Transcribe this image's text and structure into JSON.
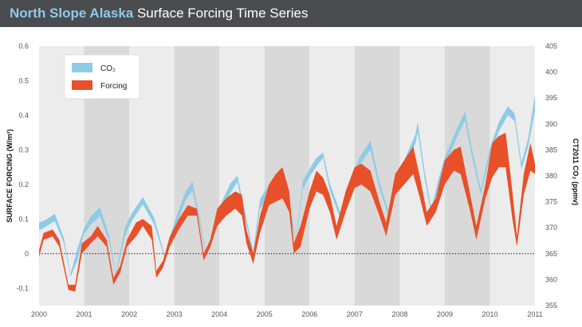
{
  "header": {
    "title_bold": "North Slope Alaska",
    "title_rest": " Surface Forcing Time Series"
  },
  "colors": {
    "header_bg": "#4a4c50",
    "title_accent": "#8ecbe6",
    "co2": "#8ecbe6",
    "forcing": "#e8502a",
    "band_dark": "#d9d9d9",
    "band_light": "#ececec"
  },
  "chart_data": {
    "type": "area",
    "title": "North Slope Alaska Surface Forcing Time Series",
    "ylabel_left": "SURFACE FORCING (W/m²)",
    "ylabel_right": "CT2011 CO₂ (ppmv)",
    "xlim": [
      2000,
      2011
    ],
    "ylim_left": [
      -0.15,
      0.6
    ],
    "ylim_right": [
      355,
      405
    ],
    "x_ticks": [
      "2000",
      "2001",
      "2002",
      "2003",
      "2004",
      "2005",
      "2006",
      "2007",
      "2008",
      "2009",
      "2010",
      "2011"
    ],
    "y_ticks_left": [
      "-0.1",
      "0",
      "0.1",
      "0.2",
      "0.3",
      "0.4",
      "0.5",
      "0.6"
    ],
    "y_ticks_right": [
      "355",
      "360",
      "365",
      "370",
      "375",
      "380",
      "385",
      "390",
      "395",
      "400",
      "405"
    ],
    "legend": {
      "position": "top-left",
      "co2_label": "CO₂",
      "forcing_label": "Forcing"
    },
    "zero_line": "dotted",
    "shaded_bands": "alternating gray year bands",
    "series": [
      {
        "name": "CO₂",
        "axis": "right",
        "points": [
          [
            2000.0,
            369.5,
            371.0
          ],
          [
            2000.15,
            370.2,
            371.5
          ],
          [
            2000.35,
            371.3,
            372.7
          ],
          [
            2000.55,
            367.0,
            368.0
          ],
          [
            2000.7,
            360.6,
            361.1
          ],
          [
            2000.85,
            363.6,
            366.0
          ],
          [
            2001.0,
            368.8,
            369.9
          ],
          [
            2001.15,
            370.6,
            372.2
          ],
          [
            2001.35,
            372.3,
            374.0
          ],
          [
            2001.55,
            367.5,
            368.6
          ],
          [
            2001.7,
            360.5,
            361.0
          ],
          [
            2001.9,
            368.3,
            369.9
          ],
          [
            2002.05,
            371.2,
            372.7
          ],
          [
            2002.3,
            374.5,
            375.9
          ],
          [
            2002.55,
            370.7,
            372.0
          ],
          [
            2002.8,
            363.8,
            364.2
          ],
          [
            2003.0,
            369.5,
            371.0
          ],
          [
            2003.25,
            375.3,
            377.0
          ],
          [
            2003.4,
            377.2,
            378.9
          ],
          [
            2003.55,
            371.5,
            372.6
          ],
          [
            2003.7,
            364.6,
            365.2
          ],
          [
            2004.0,
            372.2,
            374.0
          ],
          [
            2004.25,
            376.8,
            378.6
          ],
          [
            2004.4,
            378.8,
            380.0
          ],
          [
            2004.6,
            370.6,
            371.8
          ],
          [
            2004.75,
            364.6,
            365.5
          ],
          [
            2004.9,
            373.6,
            375.5
          ],
          [
            2005.15,
            377.2,
            379.0
          ],
          [
            2005.35,
            380.0,
            381.4
          ],
          [
            2005.55,
            373.4,
            374.8
          ],
          [
            2005.7,
            367.3,
            367.9
          ],
          [
            2005.85,
            377.5,
            379.0
          ],
          [
            2006.0,
            379.8,
            381.3
          ],
          [
            2006.15,
            381.8,
            383.5
          ],
          [
            2006.3,
            383.5,
            384.5
          ],
          [
            2006.45,
            377.2,
            378.5
          ],
          [
            2006.7,
            371.3,
            372.5
          ],
          [
            2006.85,
            375.8,
            377.5
          ],
          [
            2007.1,
            382.0,
            383.5
          ],
          [
            2007.35,
            385.0,
            386.8
          ],
          [
            2007.55,
            377.6,
            378.8
          ],
          [
            2007.75,
            372.3,
            373.3
          ],
          [
            2007.9,
            377.4,
            379.0
          ],
          [
            2008.1,
            381.2,
            383.0
          ],
          [
            2008.35,
            386.3,
            388.0
          ],
          [
            2008.4,
            388.5,
            390.3
          ],
          [
            2008.55,
            379.5,
            381.0
          ],
          [
            2008.7,
            372.5,
            373.6
          ],
          [
            2008.85,
            377.5,
            379.0
          ],
          [
            2009.0,
            382.0,
            383.6
          ],
          [
            2009.3,
            388.0,
            389.7
          ],
          [
            2009.45,
            390.7,
            392.4
          ],
          [
            2009.6,
            383.8,
            385.3
          ],
          [
            2009.8,
            376.4,
            377.4
          ],
          [
            2010.0,
            383.7,
            385.3
          ],
          [
            2010.2,
            388.6,
            390.4
          ],
          [
            2010.4,
            391.7,
            393.4
          ],
          [
            2010.55,
            390.5,
            392.0
          ],
          [
            2010.7,
            381.2,
            382.5
          ],
          [
            2010.85,
            385.6,
            387.2
          ],
          [
            2011.0,
            392.5,
            395.6
          ]
        ]
      },
      {
        "name": "Forcing",
        "axis": "left",
        "points": [
          [
            2000.0,
            -0.01,
            0.01
          ],
          [
            2000.1,
            0.04,
            0.06
          ],
          [
            2000.3,
            0.05,
            0.07
          ],
          [
            2000.45,
            0.02,
            0.04
          ],
          [
            2000.65,
            -0.105,
            -0.09
          ],
          [
            2000.8,
            -0.11,
            -0.09
          ],
          [
            2000.95,
            0.0,
            0.03
          ],
          [
            2001.15,
            0.03,
            0.05
          ],
          [
            2001.3,
            0.05,
            0.08
          ],
          [
            2001.5,
            0.02,
            0.04
          ],
          [
            2001.65,
            -0.09,
            -0.07
          ],
          [
            2001.8,
            -0.055,
            -0.035
          ],
          [
            2001.95,
            0.02,
            0.04
          ],
          [
            2002.15,
            0.05,
            0.09
          ],
          [
            2002.3,
            0.08,
            0.1
          ],
          [
            2002.5,
            0.04,
            0.08
          ],
          [
            2002.6,
            -0.07,
            -0.05
          ],
          [
            2002.75,
            -0.04,
            -0.02
          ],
          [
            2002.9,
            0.02,
            0.05
          ],
          [
            2003.1,
            0.07,
            0.1
          ],
          [
            2003.3,
            0.11,
            0.14
          ],
          [
            2003.5,
            0.11,
            0.13
          ],
          [
            2003.65,
            -0.02,
            0.0
          ],
          [
            2003.8,
            0.02,
            0.04
          ],
          [
            2003.95,
            0.08,
            0.13
          ],
          [
            2004.15,
            0.11,
            0.16
          ],
          [
            2004.35,
            0.13,
            0.18
          ],
          [
            2004.5,
            0.11,
            0.17
          ],
          [
            2004.6,
            0.03,
            0.07
          ],
          [
            2004.75,
            -0.03,
            0.0
          ],
          [
            2004.9,
            0.06,
            0.11
          ],
          [
            2005.1,
            0.14,
            0.2
          ],
          [
            2005.25,
            0.15,
            0.23
          ],
          [
            2005.4,
            0.16,
            0.25
          ],
          [
            2005.55,
            0.12,
            0.18
          ],
          [
            2005.65,
            0.0,
            0.03
          ],
          [
            2005.8,
            0.02,
            0.08
          ],
          [
            2006.0,
            0.13,
            0.18
          ],
          [
            2006.15,
            0.18,
            0.24
          ],
          [
            2006.3,
            0.17,
            0.22
          ],
          [
            2006.45,
            0.12,
            0.17
          ],
          [
            2006.6,
            0.04,
            0.08
          ],
          [
            2006.8,
            0.12,
            0.18
          ],
          [
            2007.0,
            0.19,
            0.25
          ],
          [
            2007.15,
            0.2,
            0.26
          ],
          [
            2007.35,
            0.18,
            0.24
          ],
          [
            2007.55,
            0.11,
            0.15
          ],
          [
            2007.7,
            0.05,
            0.09
          ],
          [
            2007.9,
            0.17,
            0.23
          ],
          [
            2008.1,
            0.2,
            0.27
          ],
          [
            2008.3,
            0.23,
            0.31
          ],
          [
            2008.45,
            0.16,
            0.22
          ],
          [
            2008.6,
            0.08,
            0.12
          ],
          [
            2008.8,
            0.12,
            0.16
          ],
          [
            2009.0,
            0.2,
            0.27
          ],
          [
            2009.2,
            0.24,
            0.3
          ],
          [
            2009.35,
            0.23,
            0.31
          ],
          [
            2009.55,
            0.13,
            0.18
          ],
          [
            2009.7,
            0.04,
            0.08
          ],
          [
            2009.9,
            0.16,
            0.2
          ],
          [
            2010.05,
            0.22,
            0.32
          ],
          [
            2010.2,
            0.25,
            0.34
          ],
          [
            2010.35,
            0.25,
            0.35
          ],
          [
            2010.5,
            0.1,
            0.18
          ],
          [
            2010.6,
            0.02,
            0.05
          ],
          [
            2010.75,
            0.17,
            0.23
          ],
          [
            2010.9,
            0.24,
            0.32
          ],
          [
            2011.0,
            0.23,
            0.26
          ]
        ]
      }
    ]
  }
}
